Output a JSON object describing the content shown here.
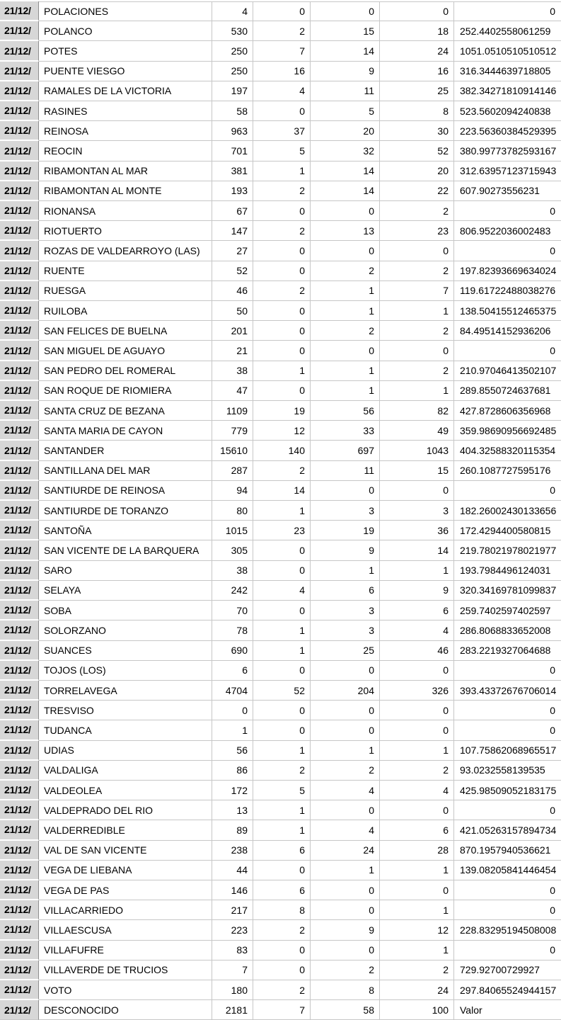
{
  "colors": {
    "header_column_bg": "#d7d7d7",
    "grid_line": "#c7c7c7",
    "header_column_divider": "#8e8e8e",
    "text": "#000000"
  },
  "table": {
    "date_label": "21/12/",
    "rows": [
      [
        "POLACIONES",
        "4",
        "0",
        "0",
        "0",
        "0"
      ],
      [
        "POLANCO",
        "530",
        "2",
        "15",
        "18",
        "252.4402558061259"
      ],
      [
        "POTES",
        "250",
        "7",
        "14",
        "24",
        "1051.0510510510512"
      ],
      [
        "PUENTE VIESGO",
        "250",
        "16",
        "9",
        "16",
        "316.3444639718805"
      ],
      [
        "RAMALES DE LA VICTORIA",
        "197",
        "4",
        "11",
        "25",
        "382.34271810914146"
      ],
      [
        "RASINES",
        "58",
        "0",
        "5",
        "8",
        "523.5602094240838"
      ],
      [
        "REINOSA",
        "963",
        "37",
        "20",
        "30",
        "223.56360384529395"
      ],
      [
        "REOCIN",
        "701",
        "5",
        "32",
        "52",
        "380.99773782593167"
      ],
      [
        "RIBAMONTAN AL MAR",
        "381",
        "1",
        "14",
        "20",
        "312.63957123715943"
      ],
      [
        "RIBAMONTAN AL MONTE",
        "193",
        "2",
        "14",
        "22",
        "607.90273556231"
      ],
      [
        "RIONANSA",
        "67",
        "0",
        "0",
        "2",
        "0"
      ],
      [
        "RIOTUERTO",
        "147",
        "2",
        "13",
        "23",
        "806.9522036002483"
      ],
      [
        "ROZAS DE VALDEARROYO (LAS)",
        "27",
        "0",
        "0",
        "0",
        "0"
      ],
      [
        "RUENTE",
        "52",
        "0",
        "2",
        "2",
        "197.82393669634024"
      ],
      [
        "RUESGA",
        "46",
        "2",
        "1",
        "7",
        "119.61722488038276"
      ],
      [
        "RUILOBA",
        "50",
        "0",
        "1",
        "1",
        "138.50415512465375"
      ],
      [
        "SAN FELICES DE BUELNA",
        "201",
        "0",
        "2",
        "2",
        "84.49514152936206"
      ],
      [
        "SAN MIGUEL DE AGUAYO",
        "21",
        "0",
        "0",
        "0",
        "0"
      ],
      [
        "SAN PEDRO DEL ROMERAL",
        "38",
        "1",
        "1",
        "2",
        "210.97046413502107"
      ],
      [
        "SAN ROQUE DE RIOMIERA",
        "47",
        "0",
        "1",
        "1",
        "289.8550724637681"
      ],
      [
        "SANTA CRUZ DE BEZANA",
        "1109",
        "19",
        "56",
        "82",
        "427.8728606356968"
      ],
      [
        "SANTA MARIA DE CAYON",
        "779",
        "12",
        "33",
        "49",
        "359.98690956692485"
      ],
      [
        "SANTANDER",
        "15610",
        "140",
        "697",
        "1043",
        "404.32588320115354"
      ],
      [
        "SANTILLANA DEL MAR",
        "287",
        "2",
        "11",
        "15",
        "260.1087727595176"
      ],
      [
        "SANTIURDE DE REINOSA",
        "94",
        "14",
        "0",
        "0",
        "0"
      ],
      [
        "SANTIURDE DE TORANZO",
        "80",
        "1",
        "3",
        "3",
        "182.26002430133656"
      ],
      [
        "SANTOÑA",
        "1015",
        "23",
        "19",
        "36",
        "172.4294400580815"
      ],
      [
        "SAN VICENTE DE LA BARQUERA",
        "305",
        "0",
        "9",
        "14",
        "219.78021978021977"
      ],
      [
        "SARO",
        "38",
        "0",
        "1",
        "1",
        "193.7984496124031"
      ],
      [
        "SELAYA",
        "242",
        "4",
        "6",
        "9",
        "320.34169781099837"
      ],
      [
        "SOBA",
        "70",
        "0",
        "3",
        "6",
        "259.7402597402597"
      ],
      [
        "SOLORZANO",
        "78",
        "1",
        "3",
        "4",
        "286.8068833652008"
      ],
      [
        "SUANCES",
        "690",
        "1",
        "25",
        "46",
        "283.2219327064688"
      ],
      [
        "TOJOS (LOS)",
        "6",
        "0",
        "0",
        "0",
        "0"
      ],
      [
        "TORRELAVEGA",
        "4704",
        "52",
        "204",
        "326",
        "393.43372676706014"
      ],
      [
        "TRESVISO",
        "0",
        "0",
        "0",
        "0",
        "0"
      ],
      [
        "TUDANCA",
        "1",
        "0",
        "0",
        "0",
        "0"
      ],
      [
        "UDIAS",
        "56",
        "1",
        "1",
        "1",
        "107.75862068965517"
      ],
      [
        "VALDALIGA",
        "86",
        "2",
        "2",
        "2",
        "93.0232558139535"
      ],
      [
        "VALDEOLEA",
        "172",
        "5",
        "4",
        "4",
        "425.98509052183175"
      ],
      [
        "VALDEPRADO DEL RIO",
        "13",
        "1",
        "0",
        "0",
        "0"
      ],
      [
        "VALDERREDIBLE",
        "89",
        "1",
        "4",
        "6",
        "421.05263157894734"
      ],
      [
        "VAL DE SAN VICENTE",
        "238",
        "6",
        "24",
        "28",
        "870.1957940536621"
      ],
      [
        "VEGA DE LIEBANA",
        "44",
        "0",
        "1",
        "1",
        "139.08205841446454"
      ],
      [
        "VEGA DE PAS",
        "146",
        "6",
        "0",
        "0",
        "0"
      ],
      [
        "VILLACARRIEDO",
        "217",
        "8",
        "0",
        "1",
        "0"
      ],
      [
        "VILLAESCUSA",
        "223",
        "2",
        "9",
        "12",
        "228.83295194508008"
      ],
      [
        "VILLAFUFRE",
        "83",
        "0",
        "0",
        "1",
        "0"
      ],
      [
        "VILLAVERDE DE TRUCIOS",
        "7",
        "0",
        "2",
        "2",
        "729.92700729927"
      ],
      [
        "VOTO",
        "180",
        "2",
        "8",
        "24",
        "297.84065524944157"
      ],
      [
        "DESCONOCIDO",
        "2181",
        "7",
        "58",
        "100",
        "Valor"
      ]
    ]
  }
}
